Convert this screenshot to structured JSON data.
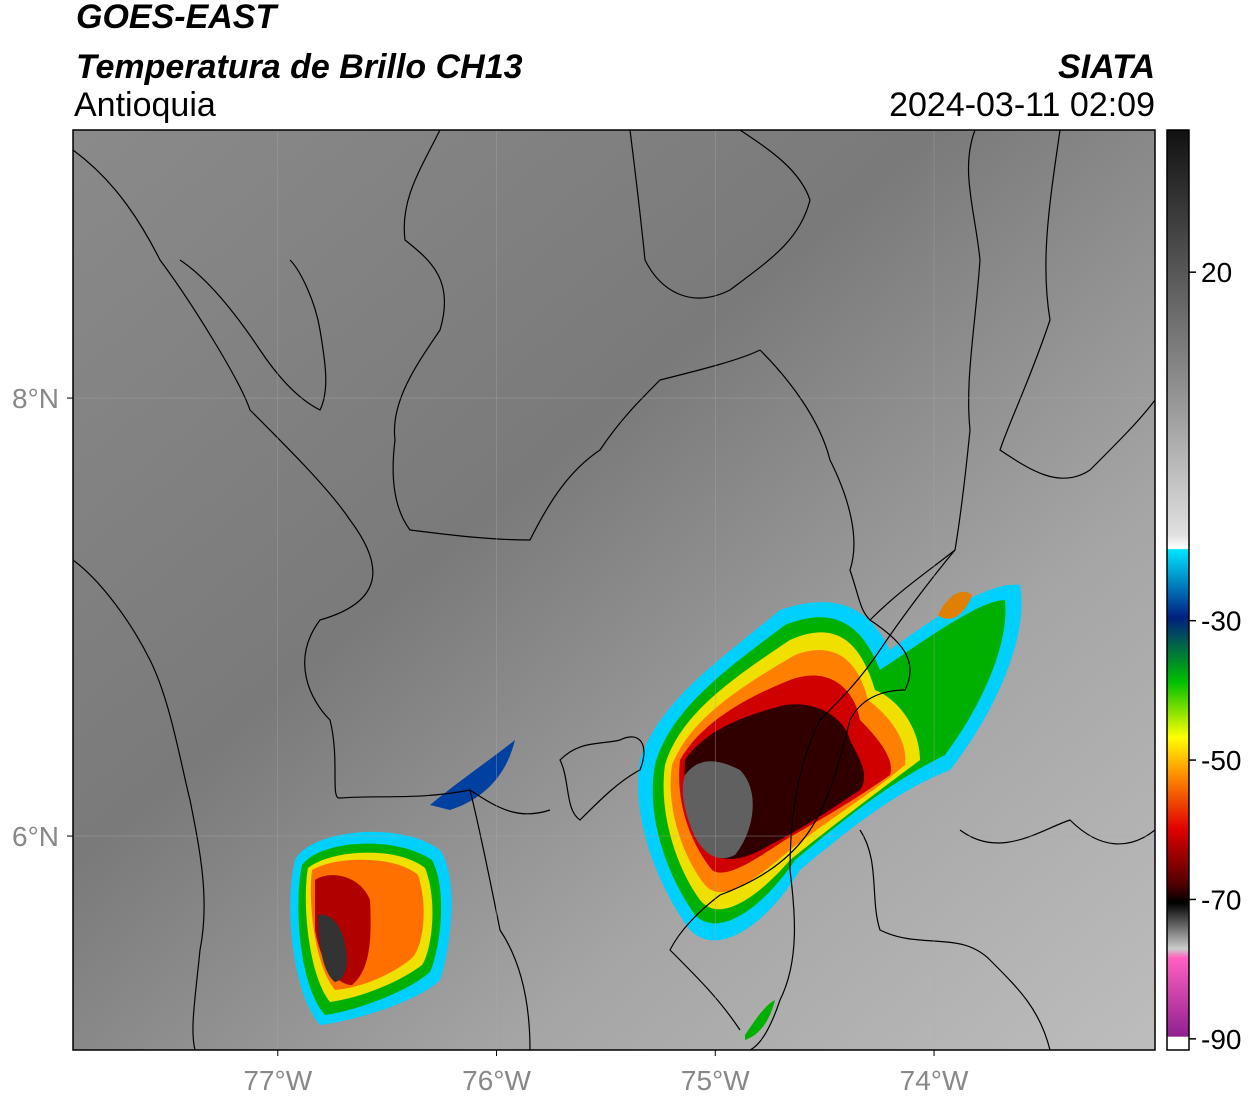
{
  "header": {
    "source": "GOES-EAST",
    "product": "Temperatura de Brillo CH13",
    "region": "Antioquia",
    "agency": "SIATA",
    "timestamp": "2024-03-11 02:09"
  },
  "map": {
    "xlim": [
      -77.936,
      -72.99
    ],
    "ylim": [
      5.023,
      9.224
    ],
    "xticks": [
      {
        "value": -77,
        "label": "77°W"
      },
      {
        "value": -76,
        "label": "76°W"
      },
      {
        "value": -75,
        "label": "75°W"
      },
      {
        "value": -74,
        "label": "74°W"
      }
    ],
    "yticks": [
      {
        "value": 6,
        "label": "6°N"
      },
      {
        "value": 8,
        "label": "8°N"
      }
    ],
    "grid": true
  },
  "colorbar": {
    "lim": [
      -91.6,
      40.4
    ],
    "ticks": [
      20,
      -30,
      -50,
      -70,
      -90
    ]
  }
}
